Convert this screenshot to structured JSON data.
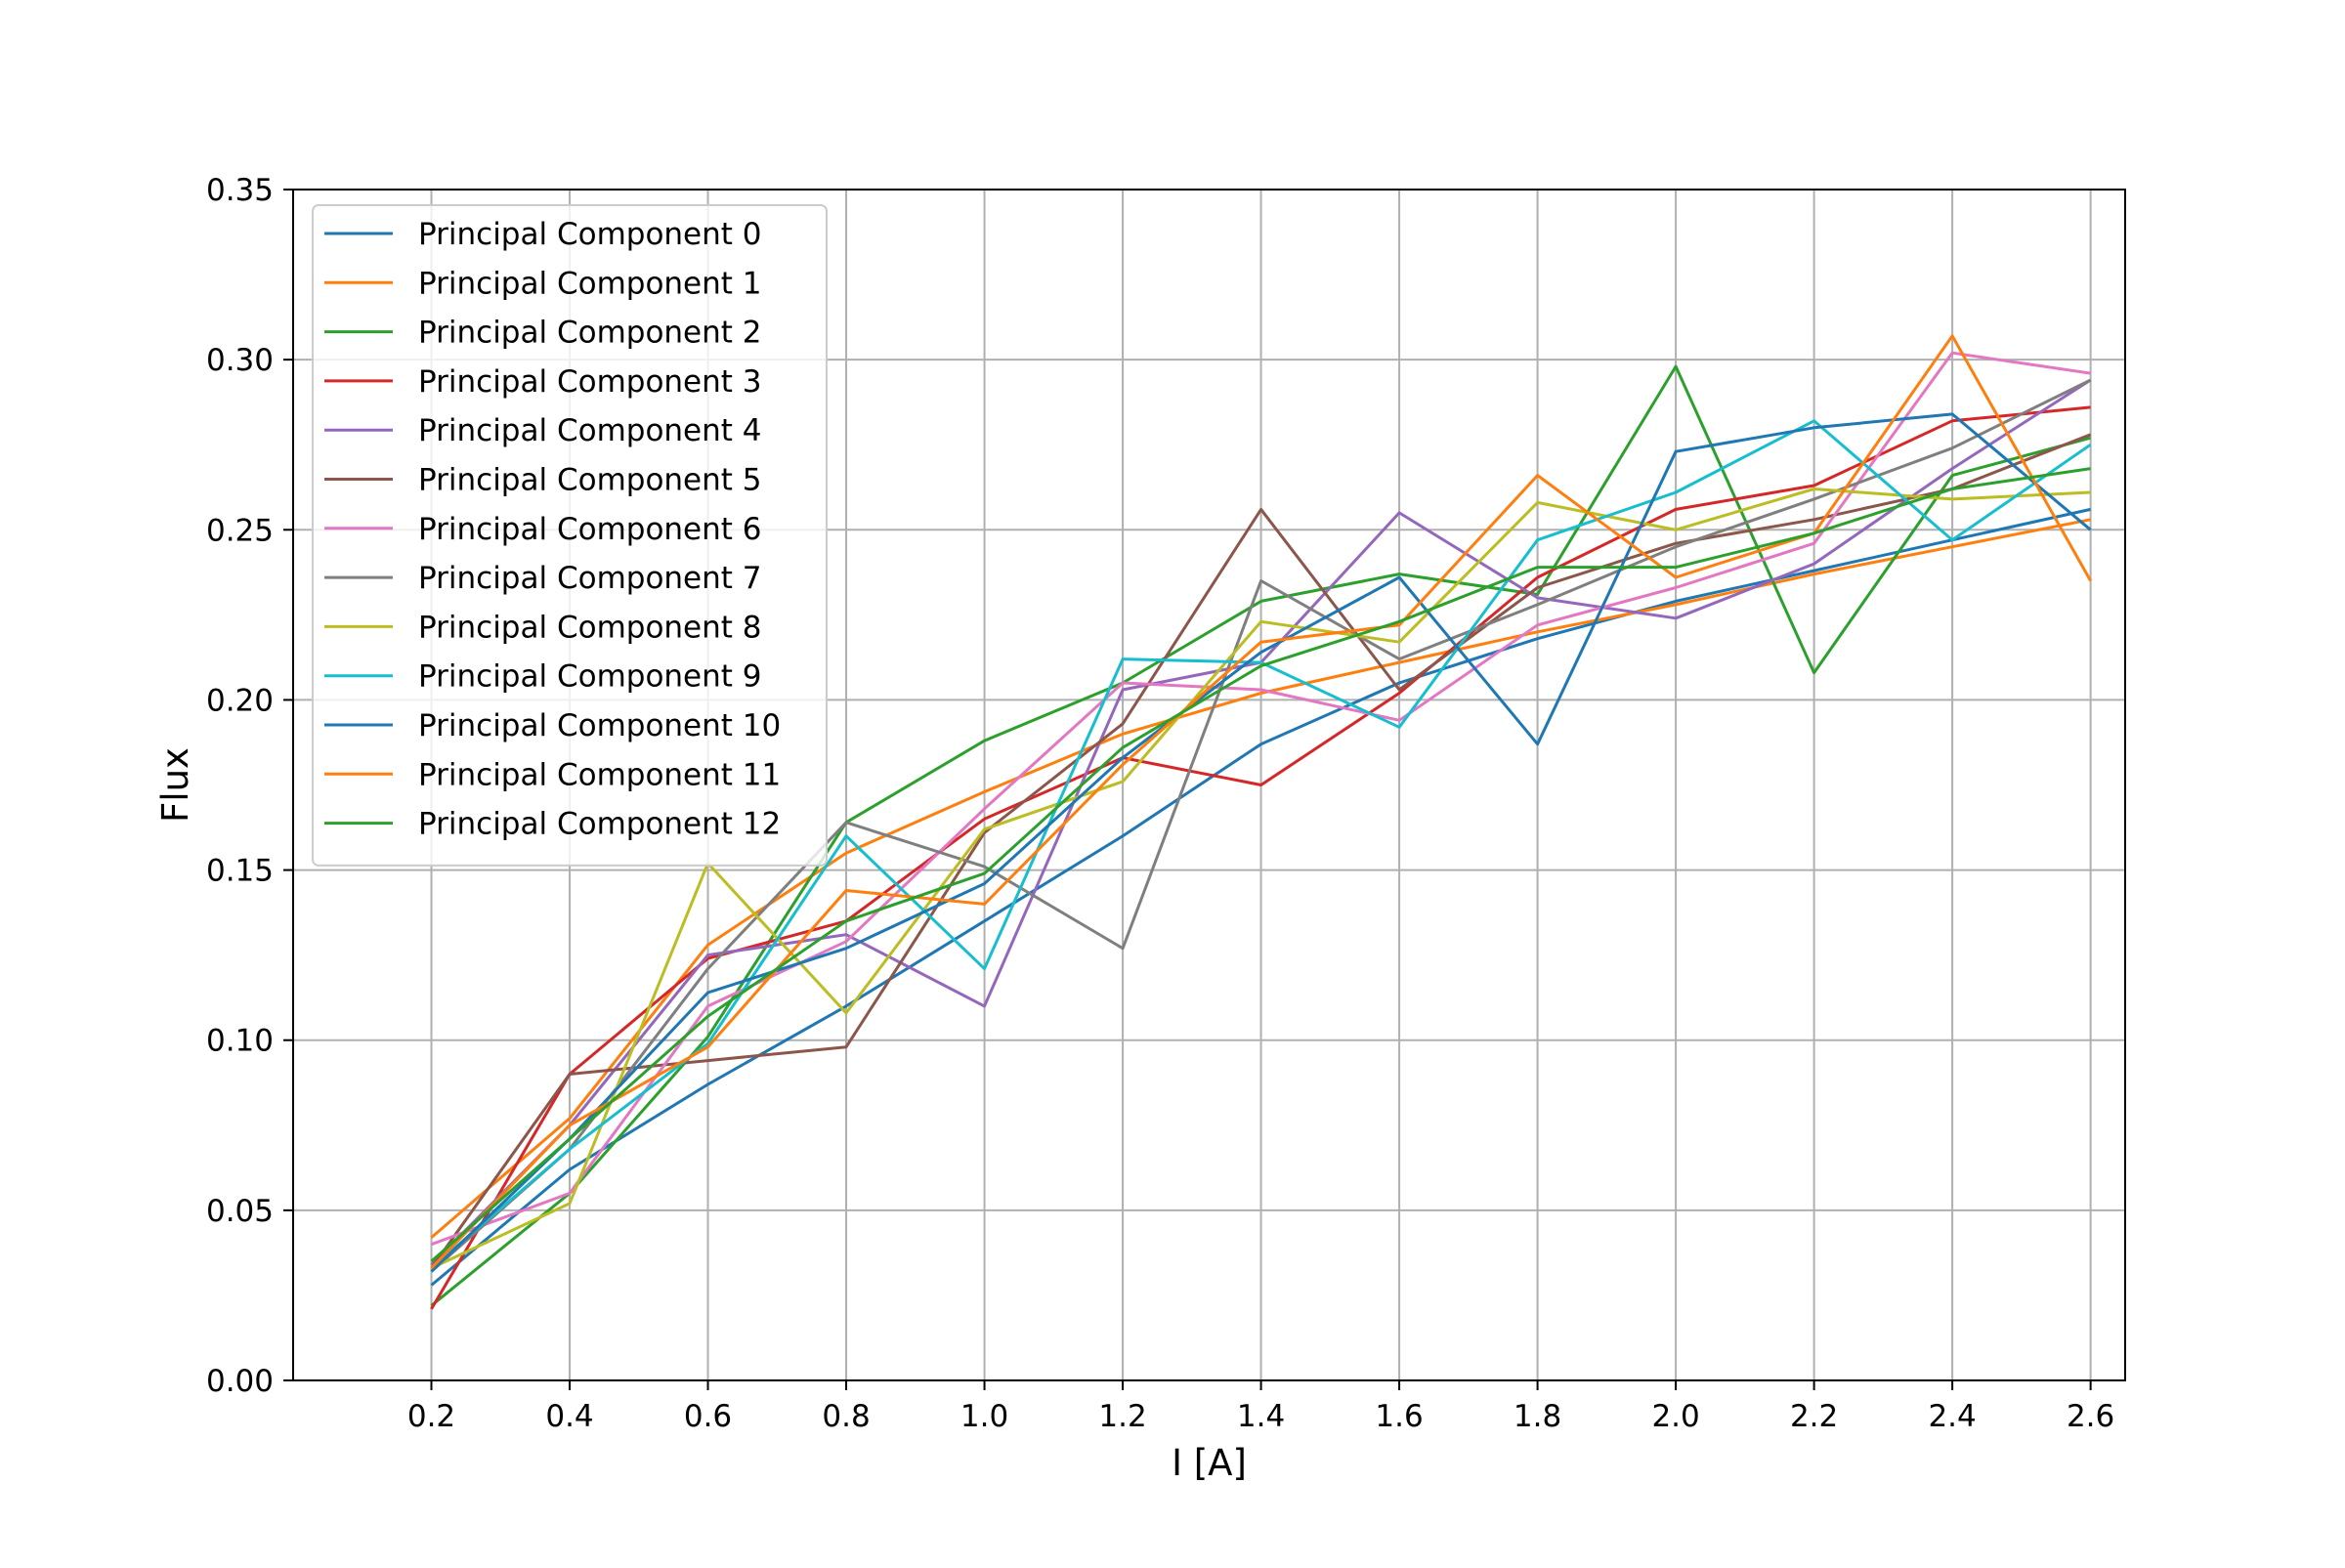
{
  "chart_data": {
    "type": "line",
    "title": "",
    "xlabel": "I [A]",
    "ylabel": "Flux",
    "xlim": [
      0.0,
      2.65
    ],
    "ylim": [
      0.0,
      0.35
    ],
    "grid": true,
    "legend_position": "top-left",
    "x": [
      0.2,
      0.4,
      0.6,
      0.8,
      1.0,
      1.2,
      1.4,
      1.6,
      1.8,
      2.0,
      2.2,
      2.4,
      2.6
    ],
    "x_tick_labels": [
      "0.2",
      "0.4",
      "0.6",
      "0.8",
      "1.0",
      "1.2",
      "1.4",
      "1.6",
      "1.8",
      "2.0",
      "2.2",
      "2.4",
      "2.6"
    ],
    "y_ticks": [
      0.0,
      0.05,
      0.1,
      0.15,
      0.2,
      0.25,
      0.3,
      0.35
    ],
    "y_tick_labels": [
      "0.00",
      "0.05",
      "0.10",
      "0.15",
      "0.20",
      "0.25",
      "0.30",
      "0.35"
    ],
    "series": [
      {
        "name": "Principal Component 0",
        "color": "#1f77b4",
        "values": [
          0.028,
          0.062,
          0.087,
          0.11,
          0.135,
          0.16,
          0.187,
          0.205,
          0.218,
          0.229,
          0.238,
          0.247,
          0.256
        ]
      },
      {
        "name": "Principal Component 1",
        "color": "#ff7f0e",
        "values": [
          0.042,
          0.077,
          0.128,
          0.155,
          0.173,
          0.19,
          0.202,
          0.211,
          0.22,
          0.228,
          0.237,
          0.245,
          0.253
        ]
      },
      {
        "name": "Principal Component 2",
        "color": "#2ca02c",
        "values": [
          0.022,
          0.055,
          0.101,
          0.164,
          0.188,
          0.205,
          0.229,
          0.237,
          0.231,
          0.298,
          0.208,
          0.266,
          0.277
        ]
      },
      {
        "name": "Principal Component 3",
        "color": "#d62728",
        "values": [
          0.021,
          0.09,
          0.124,
          0.135,
          0.165,
          0.183,
          0.175,
          0.202,
          0.236,
          0.256,
          0.263,
          0.282,
          0.286
        ]
      },
      {
        "name": "Principal Component 4",
        "color": "#9467bd",
        "values": [
          0.034,
          0.075,
          0.125,
          0.131,
          0.11,
          0.203,
          0.211,
          0.255,
          0.23,
          0.224,
          0.24,
          0.268,
          0.294
        ]
      },
      {
        "name": "Principal Component 5",
        "color": "#8c564b",
        "values": [
          0.033,
          0.09,
          0.094,
          0.098,
          0.161,
          0.193,
          0.256,
          0.203,
          0.233,
          0.246,
          0.253,
          0.262,
          0.278
        ]
      },
      {
        "name": "Principal Component 6",
        "color": "#e377c2",
        "values": [
          0.04,
          0.055,
          0.11,
          0.129,
          0.168,
          0.205,
          0.203,
          0.194,
          0.222,
          0.233,
          0.246,
          0.302,
          0.296
        ]
      },
      {
        "name": "Principal Component 7",
        "color": "#7f7f7f",
        "values": [
          0.032,
          0.068,
          0.121,
          0.164,
          0.151,
          0.127,
          0.235,
          0.212,
          0.228,
          0.245,
          0.259,
          0.274,
          0.294
        ]
      },
      {
        "name": "Principal Component 8",
        "color": "#bcbd22",
        "values": [
          0.033,
          0.052,
          0.152,
          0.108,
          0.162,
          0.176,
          0.223,
          0.217,
          0.258,
          0.25,
          0.262,
          0.259,
          0.261
        ]
      },
      {
        "name": "Principal Component 9",
        "color": "#17becf",
        "values": [
          0.033,
          0.068,
          0.099,
          0.16,
          0.121,
          0.212,
          0.211,
          0.192,
          0.247,
          0.261,
          0.282,
          0.247,
          0.275
        ]
      },
      {
        "name": "Principal Component 10",
        "color": "#1f77b4",
        "values": [
          0.032,
          0.071,
          0.114,
          0.127,
          0.146,
          0.183,
          0.214,
          0.236,
          0.187,
          0.273,
          0.28,
          0.284,
          0.25
        ]
      },
      {
        "name": "Principal Component 11",
        "color": "#ff7f0e",
        "values": [
          0.033,
          0.075,
          0.098,
          0.144,
          0.14,
          0.181,
          0.217,
          0.222,
          0.266,
          0.236,
          0.249,
          0.307,
          0.235
        ]
      },
      {
        "name": "Principal Component 12",
        "color": "#2ca02c",
        "values": [
          0.035,
          0.071,
          0.107,
          0.135,
          0.149,
          0.186,
          0.21,
          0.223,
          0.239,
          0.239,
          0.249,
          0.262,
          0.268
        ]
      }
    ]
  }
}
